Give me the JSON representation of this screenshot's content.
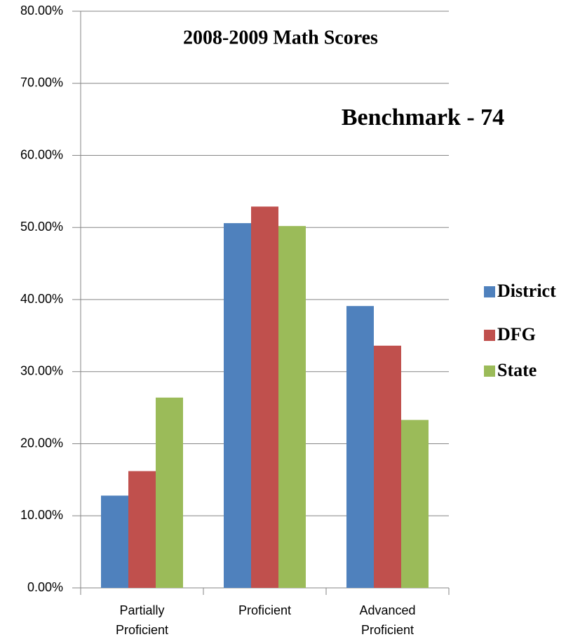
{
  "chart_data": {
    "type": "bar",
    "title": "2008-2009 Math Scores",
    "annotations": [
      "Benchmark - 74"
    ],
    "categories": [
      "Partially Proficient",
      "Proficient",
      "Advanced Proficient"
    ],
    "series": [
      {
        "name": "District",
        "color": "#4f81bd",
        "values": [
          12.8,
          50.6,
          39.1
        ]
      },
      {
        "name": "DFG",
        "color": "#c0504d",
        "values": [
          16.2,
          52.9,
          33.6
        ]
      },
      {
        "name": "State",
        "color": "#9bbb59",
        "values": [
          26.4,
          50.2,
          23.3
        ]
      }
    ],
    "ylim": [
      0,
      80
    ],
    "yticks": [
      {
        "value": 0,
        "label": "0.00%"
      },
      {
        "value": 10,
        "label": "10.00%"
      },
      {
        "value": 20,
        "label": "20.00%"
      },
      {
        "value": 30,
        "label": "30.00%"
      },
      {
        "value": 40,
        "label": "40.00%"
      },
      {
        "value": 50,
        "label": "50.00%"
      },
      {
        "value": 60,
        "label": "60.00%"
      },
      {
        "value": 70,
        "label": "70.00%"
      },
      {
        "value": 80,
        "label": "80.00%"
      }
    ],
    "grid": true,
    "legend": "right"
  }
}
